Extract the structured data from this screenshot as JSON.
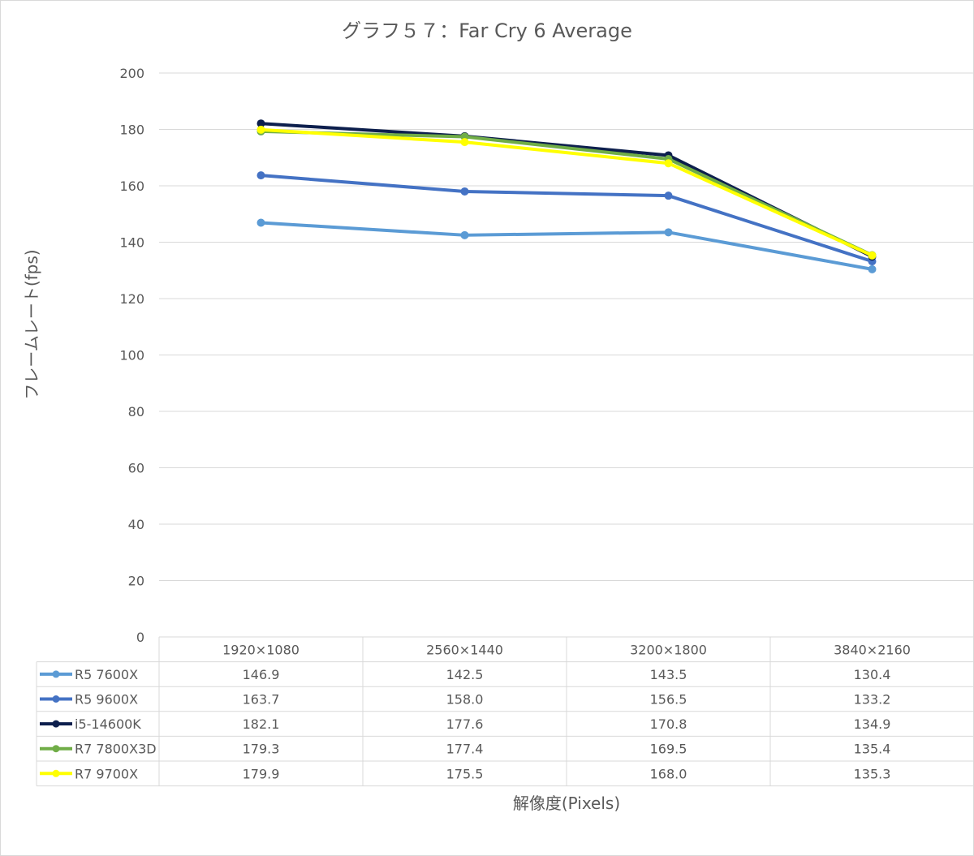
{
  "chart_data": {
    "type": "line",
    "title": "グラフ５７：Far Cry 6 Average",
    "xlabel": "解像度(Pixels)",
    "ylabel": "フレームレート(fps)",
    "ylim": [
      0,
      200
    ],
    "yticks": [
      0,
      20,
      40,
      60,
      80,
      100,
      120,
      140,
      160,
      180,
      200
    ],
    "grid": true,
    "legend": "data-table",
    "categories": [
      "1920×1080",
      "2560×1440",
      "3200×1800",
      "3840×2160"
    ],
    "series": [
      {
        "name": "R5 7600X",
        "color": "#5b9bd5",
        "values": [
          146.9,
          142.5,
          143.5,
          130.4
        ],
        "labels": [
          "146.9",
          "142.5",
          "143.5",
          "130.4"
        ]
      },
      {
        "name": "R5 9600X",
        "color": "#4472c4",
        "values": [
          163.7,
          158.0,
          156.5,
          133.2
        ],
        "labels": [
          "163.7",
          "158.0",
          "156.5",
          "133.2"
        ]
      },
      {
        "name": "i5-14600K",
        "color": "#0d1f4d",
        "values": [
          182.1,
          177.6,
          170.8,
          134.9
        ],
        "labels": [
          "182.1",
          "177.6",
          "170.8",
          "134.9"
        ]
      },
      {
        "name": "R7 7800X3D",
        "color": "#70ad47",
        "values": [
          179.3,
          177.4,
          169.5,
          135.4
        ],
        "labels": [
          "179.3",
          "177.4",
          "169.5",
          "135.4"
        ]
      },
      {
        "name": "R7 9700X",
        "color": "#ffff00",
        "values": [
          179.9,
          175.5,
          168.0,
          135.3
        ],
        "labels": [
          "179.9",
          "175.5",
          "168.0",
          "135.3"
        ]
      }
    ]
  }
}
